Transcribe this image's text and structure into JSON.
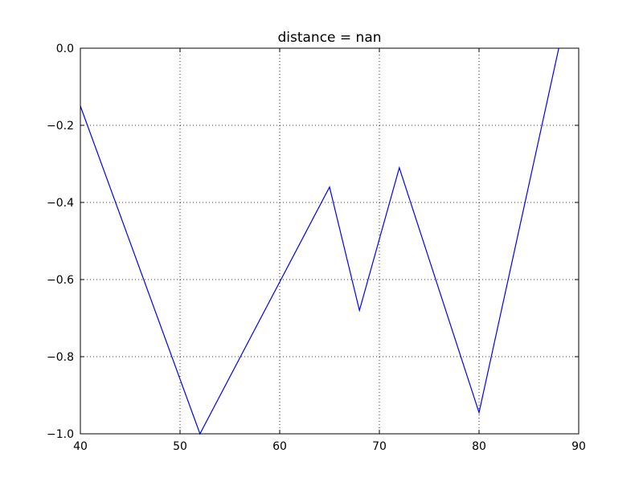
{
  "chart_data": {
    "type": "line",
    "title": "distance = nan",
    "xlabel": "",
    "ylabel": "",
    "xlim": [
      40,
      90
    ],
    "ylim": [
      -1.0,
      0.0
    ],
    "xticks": [
      40,
      50,
      60,
      70,
      80,
      90
    ],
    "xtick_labels": [
      "40",
      "50",
      "60",
      "70",
      "80",
      "90"
    ],
    "yticks": [
      0.0,
      -0.2,
      -0.4,
      -0.6,
      -0.8,
      -1.0
    ],
    "ytick_labels": [
      "0.0",
      "−0.2",
      "−0.4",
      "−0.6",
      "−0.8",
      "−1.0"
    ],
    "grid": true,
    "series": [
      {
        "color": "#0000ff",
        "x": [
          40,
          52,
          65,
          68,
          72,
          80,
          88
        ],
        "y": [
          -0.15,
          -1.0,
          -0.36,
          -0.68,
          -0.31,
          -0.945,
          0.0
        ]
      }
    ]
  }
}
